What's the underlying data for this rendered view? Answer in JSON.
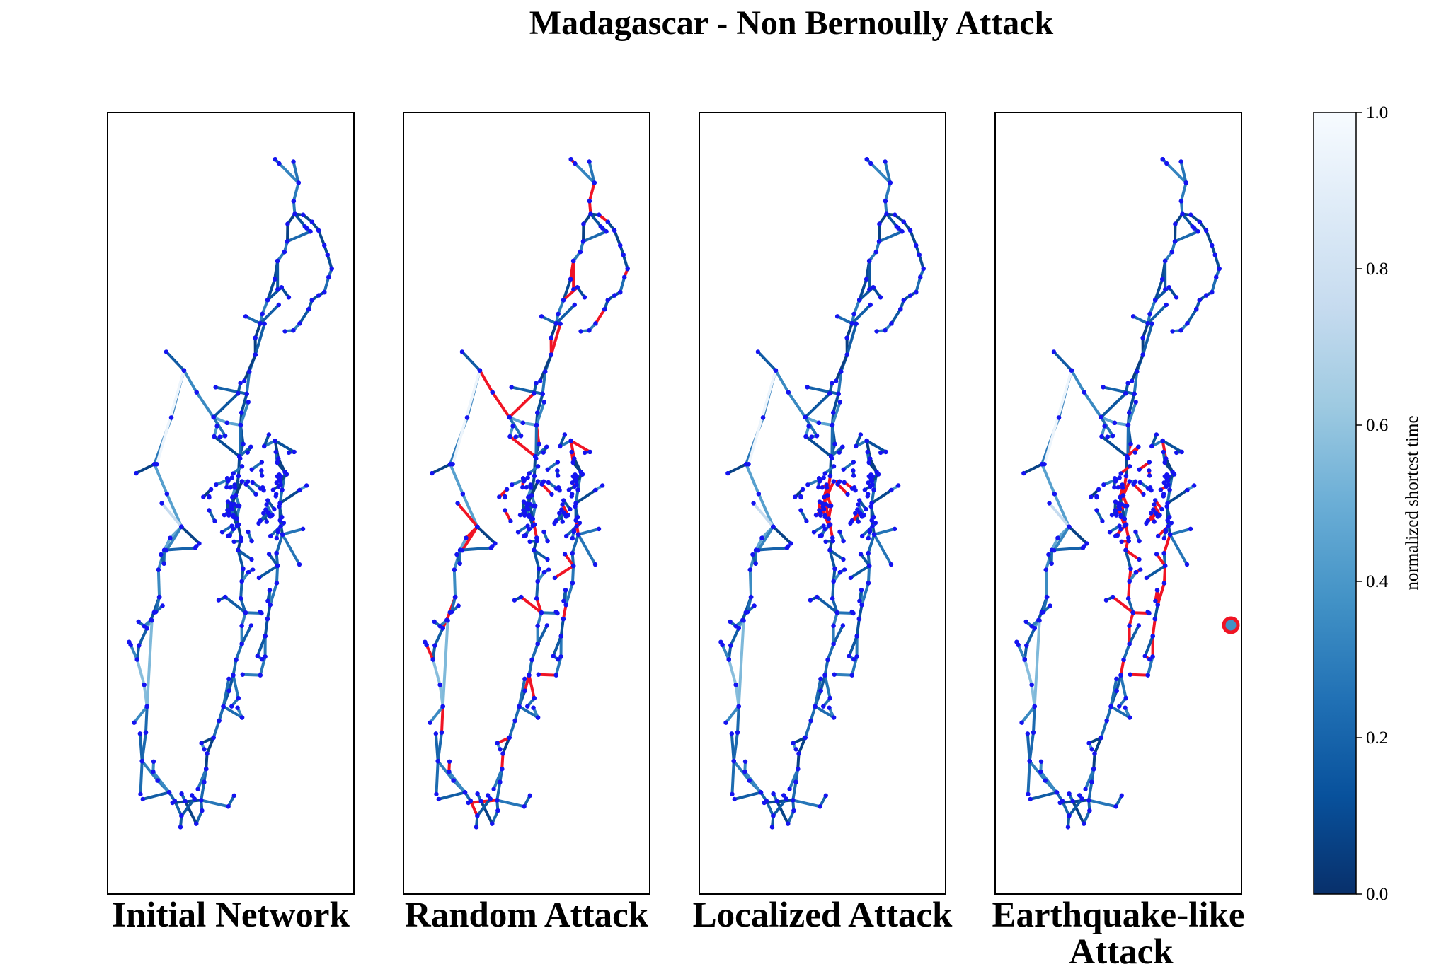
{
  "chart_data": {
    "type": "network-map",
    "title": "Madagascar - Non Bernoully Attack",
    "panels": [
      {
        "label": "Initial Network",
        "attack": "none"
      },
      {
        "label": "Random Attack",
        "attack": "random"
      },
      {
        "label": "Localized Attack",
        "attack": "localized"
      },
      {
        "label": "Earthquake-like Attack",
        "label_lines": [
          "Earthquake-like",
          "Attack"
        ],
        "attack": "earthquake"
      }
    ],
    "colorbar": {
      "label": "normalized shortest time",
      "range": [
        0.0,
        1.0
      ],
      "ticks": [
        "0.0",
        "0.2",
        "0.4",
        "0.6",
        "0.8",
        "1.0"
      ],
      "colormap": "Blues_r",
      "stops": [
        "#08306b",
        "#08519c",
        "#2171b5",
        "#4292c6",
        "#6baed6",
        "#9ecae1",
        "#c6dbef",
        "#deebf7",
        "#f7fbff"
      ]
    },
    "colors": {
      "node": "#1414f0",
      "removed": "#f01424",
      "epicenter_fill": "#4292c6",
      "epicenter_ring": "#f01424"
    }
  }
}
